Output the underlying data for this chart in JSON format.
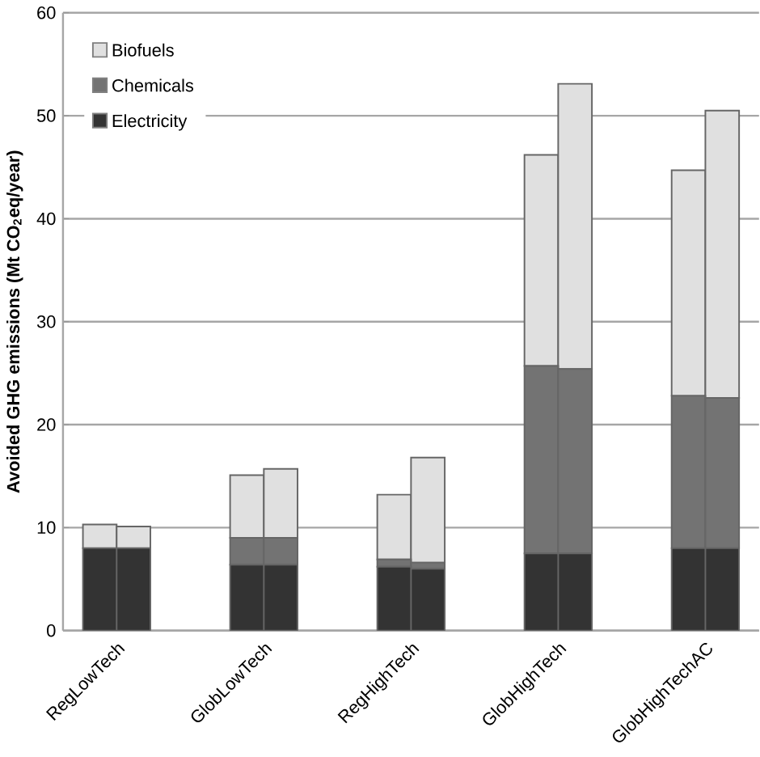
{
  "chart_data": {
    "type": "bar",
    "stacked": true,
    "ylabel": "**Avoided GHG emissions (Mt CO$_{2}$eq/year)**",
    "categories": [
      "RegLowTech",
      null,
      "GlobLowTech",
      null,
      "RegHighTech",
      null,
      "GlobHighTech",
      null,
      "GlobHighTechAC",
      null
    ],
    "series": [
      {
        "name": "Electricity",
        "color": "#333333",
        "values": [
          8.0,
          8.0,
          6.4,
          6.4,
          6.2,
          6.0,
          7.5,
          7.5,
          8.0,
          8.0
        ]
      },
      {
        "name": "Chemicals",
        "color": "#737373",
        "values": [
          0,
          0,
          2.6,
          2.6,
          0.7,
          0.6,
          18.2,
          17.9,
          14.8,
          14.6
        ]
      },
      {
        "name": "Biofuels",
        "color": "#e0e0e0",
        "values": [
          2.3,
          2.1,
          6.1,
          6.7,
          6.3,
          10.2,
          20.5,
          27.7,
          21.9,
          27.9
        ]
      }
    ],
    "ylim": [
      0,
      60
    ],
    "yticks": [
      0,
      10,
      20,
      30,
      40,
      50,
      60
    ],
    "grid": "y",
    "legend": "top left"
  }
}
